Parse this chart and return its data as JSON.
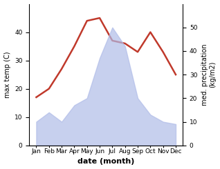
{
  "months": [
    "Jan",
    "Feb",
    "Mar",
    "Apr",
    "May",
    "Jun",
    "Jul",
    "Aug",
    "Sep",
    "Oct",
    "Nov",
    "Dec"
  ],
  "temperature": [
    17,
    20,
    27,
    35,
    44,
    45,
    37,
    36,
    33,
    40,
    33,
    25
  ],
  "precipitation": [
    10,
    14,
    10,
    17,
    20,
    37,
    50,
    42,
    20,
    13,
    10,
    9
  ],
  "temp_color": "#c0392b",
  "precip_fill_color": "#b0bce8",
  "precip_alpha": 0.7,
  "temp_ylim": [
    0,
    50
  ],
  "temp_yticks": [
    0,
    10,
    20,
    30,
    40
  ],
  "precip_ylim": [
    0,
    60
  ],
  "precip_yticks": [
    0,
    10,
    20,
    30,
    40,
    50
  ],
  "ylabel_left": "max temp (C)",
  "ylabel_right": "med. precipitation\n(kg/m2)",
  "xlabel": "date (month)",
  "bg_color": "#ffffff",
  "temp_linewidth": 1.8,
  "label_fontsize": 7,
  "tick_fontsize": 6.5,
  "xlabel_fontsize": 8
}
